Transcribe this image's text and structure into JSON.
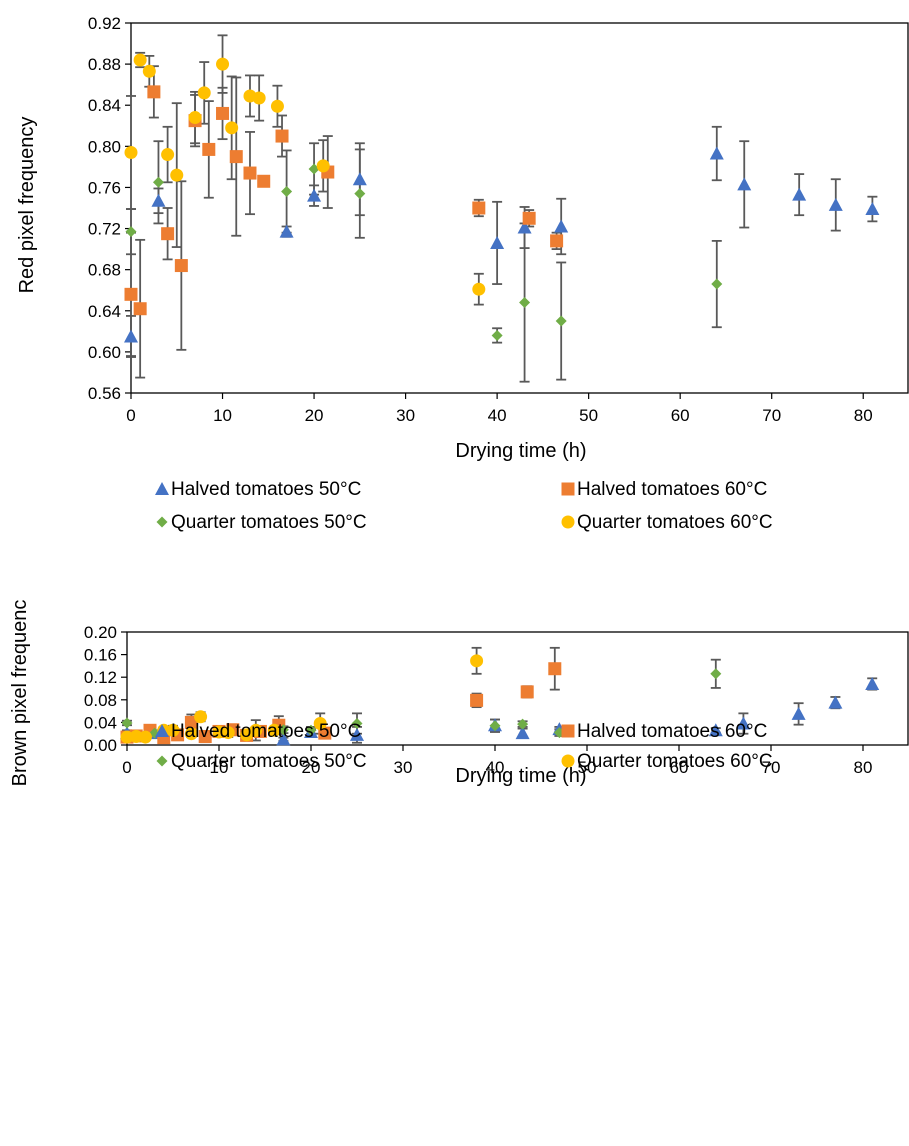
{
  "marker_colors": {
    "blue": "#4472C4",
    "orange": "#ED7D31",
    "green": "#70AD47",
    "yellow": "#FFC000",
    "errorbar": "#595959"
  },
  "chart_data": [
    {
      "type": "scatter",
      "xlabel": "Drying time (h)",
      "ylabel": "Red pixel frequency",
      "xlim": [
        0,
        85
      ],
      "ylim": [
        0.56,
        0.92
      ],
      "xticks": [
        "0",
        "10",
        "20",
        "30",
        "40",
        "50",
        "60",
        "70",
        "80"
      ],
      "yticks": [
        "0.56",
        "0.60",
        "0.64",
        "0.68",
        "0.72",
        "0.76",
        "0.80",
        "0.84",
        "0.88",
        "0.92"
      ],
      "legend_position": "bottom",
      "series": [
        {
          "name": "Halved tomatoes 50°C",
          "marker": "triangle",
          "color": "#4472C4",
          "x": [
            0,
            3,
            17,
            20,
            25,
            40,
            43,
            47,
            64,
            67,
            73,
            77,
            81
          ],
          "y": [
            0.615,
            0.747,
            0.717,
            0.752,
            0.768,
            0.706,
            0.721,
            0.722,
            0.793,
            0.763,
            0.753,
            0.743,
            0.739
          ],
          "err": [
            0.02,
            0.012,
            0.005,
            0.01,
            0.035,
            0.04,
            0.02,
            0.027,
            0.026,
            0.042,
            0.02,
            0.025,
            0.012
          ]
        },
        {
          "name": "Halved tomatoes 60°C",
          "marker": "square",
          "color": "#ED7D31",
          "x": [
            0,
            1,
            2.5,
            4,
            5.5,
            7,
            8.5,
            10,
            11.5,
            13,
            14.5,
            16.5,
            21.5,
            38,
            43.5,
            46.5
          ],
          "y": [
            0.656,
            0.642,
            0.853,
            0.715,
            0.684,
            0.825,
            0.797,
            0.832,
            0.79,
            0.774,
            0.766,
            0.81,
            0.775,
            0.74,
            0.73,
            0.708
          ],
          "err": [
            0.06,
            0.067,
            0.025,
            0.025,
            0.082,
            0.025,
            0.047,
            0.025,
            0.077,
            0.04,
            0.005,
            0.02,
            0.035,
            0.008,
            0.008,
            0.008
          ]
        },
        {
          "name": "Quarter tomatoes 50°C",
          "marker": "diamond",
          "color": "#70AD47",
          "x": [
            0,
            3,
            17,
            20,
            25,
            40,
            43,
            47,
            64
          ],
          "y": [
            0.717,
            0.765,
            0.756,
            0.778,
            0.754,
            0.616,
            0.648,
            0.63,
            0.666
          ],
          "err": [
            0.022,
            0.04,
            0.04,
            0.025,
            0.043,
            0.007,
            0.077,
            0.057,
            0.042
          ]
        },
        {
          "name": "Quarter tomatoes 60°C",
          "marker": "circle",
          "color": "#FFC000",
          "x": [
            0,
            1,
            2,
            4,
            5,
            7,
            8,
            10,
            11,
            13,
            14,
            16,
            21,
            38
          ],
          "y": [
            0.794,
            0.884,
            0.873,
            0.792,
            0.772,
            0.828,
            0.852,
            0.88,
            0.818,
            0.849,
            0.847,
            0.839,
            0.781,
            0.661
          ],
          "err": [
            0.055,
            0.007,
            0.015,
            0.027,
            0.07,
            0.025,
            0.03,
            0.028,
            0.05,
            0.02,
            0.022,
            0.02,
            0.025,
            0.015
          ]
        }
      ]
    },
    {
      "type": "scatter",
      "xlabel": "Drying time (h)",
      "ylabel": "Brown pixel frequency",
      "xlim": [
        0,
        85
      ],
      "ylim": [
        0,
        0.2
      ],
      "xticks": [
        "0",
        "10",
        "20",
        "30",
        "40",
        "50",
        "60",
        "70",
        "80"
      ],
      "yticks": [
        "0.00",
        "0.04",
        "0.08",
        "0.12",
        "0.16",
        "0.20"
      ],
      "legend_position": "bottom",
      "series": [
        {
          "name": "Halved tomatoes 50°C",
          "marker": "triangle",
          "color": "#4472C4",
          "x": [
            0,
            3,
            17,
            20,
            25,
            40,
            43,
            47,
            64,
            67,
            73,
            77,
            81
          ],
          "y": [
            0.021,
            0.021,
            0.01,
            0.023,
            0.018,
            0.035,
            0.021,
            0.028,
            0.026,
            0.038,
            0.055,
            0.075,
            0.108
          ],
          "err": [
            0.005,
            0.005,
            0.003,
            0.005,
            0.014,
            0.01,
            0.008,
            0.004,
            0.004,
            0.018,
            0.019,
            0.01,
            0.01
          ]
        },
        {
          "name": "Halved tomatoes 60°C",
          "marker": "square",
          "color": "#ED7D31",
          "x": [
            0,
            1,
            2.5,
            4,
            5.5,
            7,
            8.5,
            10,
            11.5,
            13,
            14.5,
            16.5,
            21.5,
            38,
            43.5,
            46.5
          ],
          "y": [
            0.014,
            0.016,
            0.026,
            0.013,
            0.018,
            0.04,
            0.015,
            0.024,
            0.027,
            0.017,
            0.024,
            0.035,
            0.021,
            0.079,
            0.094,
            0.135
          ],
          "err": [
            0.004,
            0.004,
            0.006,
            0.005,
            0.006,
            0.014,
            0.01,
            0.006,
            0.006,
            0.008,
            0.006,
            0.016,
            0.008,
            0.012,
            0.01,
            0.037
          ]
        },
        {
          "name": "Quarter tomatoes 50°C",
          "marker": "diamond",
          "color": "#70AD47",
          "x": [
            0,
            3,
            17,
            20,
            25,
            40,
            43,
            47,
            64
          ],
          "y": [
            0.039,
            0.021,
            0.027,
            0.026,
            0.038,
            0.034,
            0.037,
            0.022,
            0.126
          ],
          "err": [
            0.004,
            0.004,
            0.006,
            0.006,
            0.018,
            0.011,
            0.005,
            0.006,
            0.025
          ]
        },
        {
          "name": "Quarter tomatoes 60°C",
          "marker": "circle",
          "color": "#FFC000",
          "x": [
            0,
            1,
            2,
            4,
            5,
            7,
            8,
            10,
            11,
            13,
            14,
            16,
            21,
            38
          ],
          "y": [
            0.014,
            0.015,
            0.014,
            0.026,
            0.026,
            0.02,
            0.05,
            0.023,
            0.022,
            0.018,
            0.026,
            0.026,
            0.038,
            0.149
          ],
          "err": [
            0.003,
            0.004,
            0.003,
            0.006,
            0.008,
            0.006,
            0.008,
            0.006,
            0.008,
            0.005,
            0.018,
            0.006,
            0.018,
            0.023
          ]
        }
      ]
    }
  ]
}
